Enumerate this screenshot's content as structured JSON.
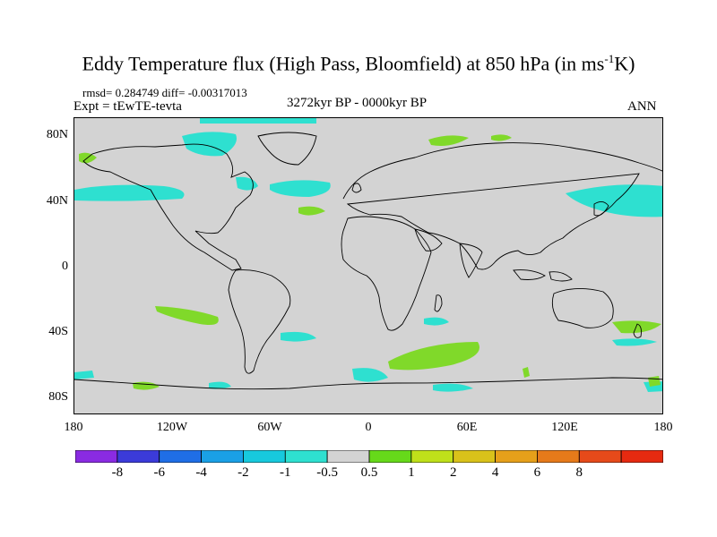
{
  "title": "Eddy Temperature flux (High Pass, Bloomfield) at 850 hPa (in ms",
  "title_sup": "-1",
  "title_end": "K)",
  "stats": "rmsd= 0.284749 diff= -0.00317013",
  "expt": "Expt = tEwTE-tevta",
  "period": "3272kyr BP - 0000kyr BP",
  "season": "ANN",
  "lat_labels": [
    "80N",
    "40N",
    "0",
    "40S",
    "80S"
  ],
  "lon_labels": [
    "180",
    "120W",
    "60W",
    "0",
    "60E",
    "120E",
    "180"
  ],
  "colorbar": {
    "colors": [
      "#8a2be2",
      "#3b3bd9",
      "#1f6ee6",
      "#1aa0e6",
      "#17c9dd",
      "#2ee0d0",
      "#d3d3d3",
      "#66d91a",
      "#bfe01a",
      "#d9c21a",
      "#e6a01a",
      "#e67a1a",
      "#e64a1a",
      "#e62a10"
    ],
    "labels": [
      "-8",
      "-6",
      "-4",
      "-2",
      "-1",
      "-0.5",
      "0.5",
      "1",
      "2",
      "4",
      "6",
      "8"
    ]
  },
  "colors": {
    "ocean_background": "#d3d3d3",
    "negative_anomaly": "#2ee0d0",
    "positive_anomaly": "#80d92a",
    "coastline": "#000000"
  }
}
